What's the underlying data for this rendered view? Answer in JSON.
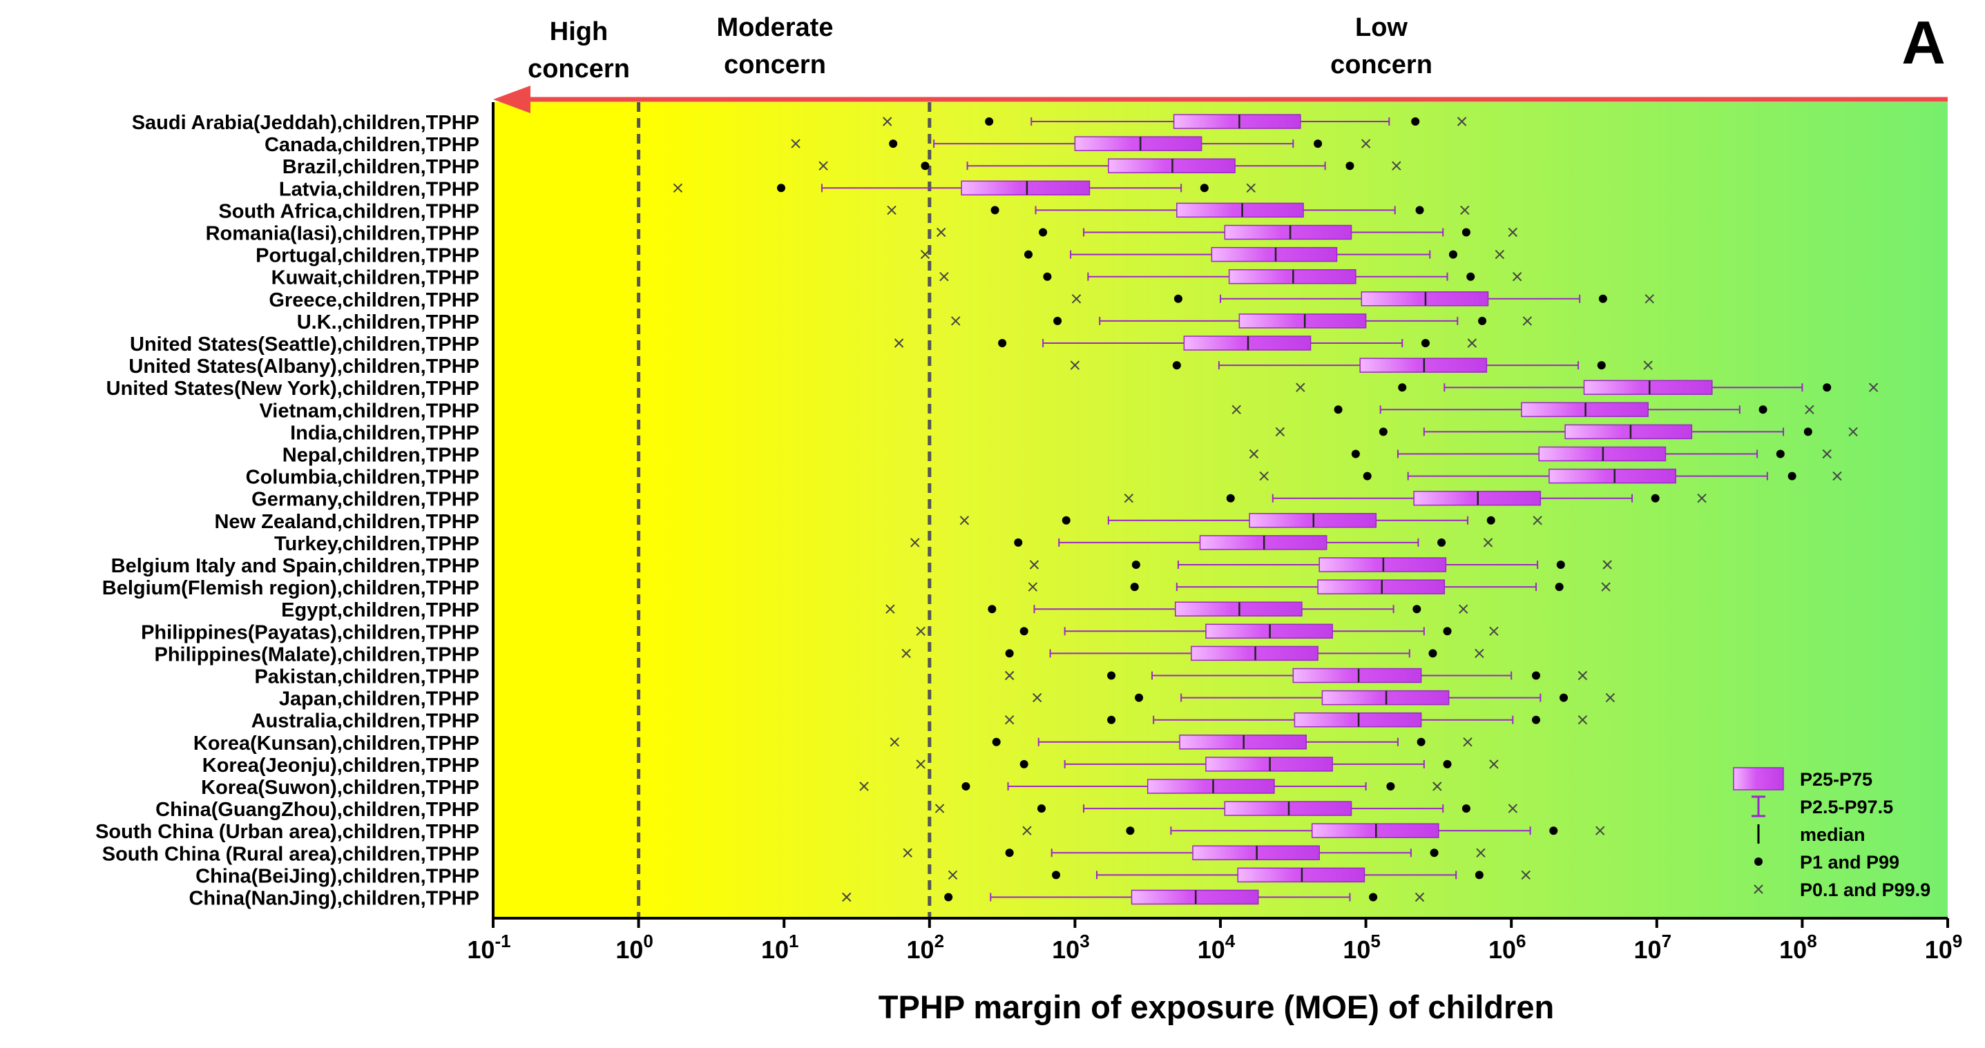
{
  "panel_label": "A",
  "concern_labels": [
    {
      "line1": "High",
      "line2": "concern"
    },
    {
      "line1": "Moderate",
      "line2": "concern"
    },
    {
      "line1": "Low",
      "line2": "concern"
    }
  ],
  "colors": {
    "box": "#c13ee8",
    "whisker": "#9b27c9",
    "arrow": "#ee4a4a",
    "bg_left": "#ffff00",
    "bg_right": "#77ef6c"
  },
  "chart_data": {
    "type": "box",
    "scale": "log10",
    "xlabel": "TPHP margin of exposure (MOE) of children",
    "xlim_exp": [
      -1,
      9
    ],
    "xticks_exp": [
      -1,
      0,
      1,
      2,
      3,
      4,
      5,
      6,
      7,
      8,
      9
    ],
    "thresholds": [
      1,
      100
    ],
    "threshold_style": "dashed",
    "legend": [
      {
        "name": "P25-P75",
        "marker": "box"
      },
      {
        "name": "P2.5-P97.5",
        "marker": "whisker"
      },
      {
        "name": "median",
        "marker": "line"
      },
      {
        "name": "P1 and P99",
        "marker": "dot"
      },
      {
        "name": "P0.1 and P99.9",
        "marker": "cross"
      }
    ],
    "legend_position": "bottom-right",
    "series_note": "values are log10(MOE): x0=P0.1, d0=P1, w0=P2.5, q1=P25, med=median, q3=P75, w1=P97.5, d1=P99, x1=P99.9",
    "rows": [
      {
        "name": "Saudi Arabia(Jeddah),children,TPHP",
        "x0": 1.71,
        "d0": 2.41,
        "w0": 2.7,
        "q1": 3.68,
        "med": 4.13,
        "q3": 4.55,
        "w1": 5.16,
        "d1": 5.34,
        "x1": 5.66
      },
      {
        "name": "Canada,children,TPHP",
        "x0": 1.08,
        "d0": 1.75,
        "w0": 2.03,
        "q1": 3.0,
        "med": 3.45,
        "q3": 3.87,
        "w1": 4.5,
        "d1": 4.67,
        "x1": 5.0
      },
      {
        "name": "Brazil,children,TPHP",
        "x0": 1.27,
        "d0": 1.97,
        "w0": 2.26,
        "q1": 3.23,
        "med": 3.67,
        "q3": 4.1,
        "w1": 4.72,
        "d1": 4.89,
        "x1": 5.21
      },
      {
        "name": "Latvia,children,TPHP",
        "x0": 0.27,
        "d0": 0.98,
        "w0": 1.26,
        "q1": 2.22,
        "med": 2.67,
        "q3": 3.1,
        "w1": 3.73,
        "d1": 3.89,
        "x1": 4.21
      },
      {
        "name": "South Africa,children,TPHP",
        "x0": 1.74,
        "d0": 2.45,
        "w0": 2.73,
        "q1": 3.7,
        "med": 4.15,
        "q3": 4.57,
        "w1": 5.2,
        "d1": 5.37,
        "x1": 5.68
      },
      {
        "name": "Romania(Iasi),children,TPHP",
        "x0": 2.08,
        "d0": 2.78,
        "w0": 3.06,
        "q1": 4.03,
        "med": 4.48,
        "q3": 4.9,
        "w1": 5.53,
        "d1": 5.69,
        "x1": 6.01
      },
      {
        "name": "Portugal,children,TPHP",
        "x0": 1.97,
        "d0": 2.68,
        "w0": 2.97,
        "q1": 3.94,
        "med": 4.38,
        "q3": 4.8,
        "w1": 5.44,
        "d1": 5.6,
        "x1": 5.92
      },
      {
        "name": "Kuwait,children,TPHP",
        "x0": 2.1,
        "d0": 2.81,
        "w0": 3.09,
        "q1": 4.06,
        "med": 4.5,
        "q3": 4.93,
        "w1": 5.56,
        "d1": 5.72,
        "x1": 6.04
      },
      {
        "name": "Greece,children,TPHP",
        "x0": 3.01,
        "d0": 3.71,
        "w0": 4.0,
        "q1": 4.97,
        "med": 5.41,
        "q3": 5.84,
        "w1": 6.47,
        "d1": 6.63,
        "x1": 6.95
      },
      {
        "name": "U.K.,children,TPHP",
        "x0": 2.18,
        "d0": 2.88,
        "w0": 3.17,
        "q1": 4.13,
        "med": 4.58,
        "q3": 5.0,
        "w1": 5.63,
        "d1": 5.8,
        "x1": 6.11
      },
      {
        "name": "United States(Seattle),children,TPHP",
        "x0": 1.79,
        "d0": 2.5,
        "w0": 2.78,
        "q1": 3.75,
        "med": 4.19,
        "q3": 4.62,
        "w1": 5.25,
        "d1": 5.41,
        "x1": 5.73
      },
      {
        "name": "United States(Albany),children,TPHP",
        "x0": 3.0,
        "d0": 3.7,
        "w0": 3.99,
        "q1": 4.96,
        "med": 5.4,
        "q3": 5.83,
        "w1": 6.46,
        "d1": 6.62,
        "x1": 6.94
      },
      {
        "name": "United States(New York),children,TPHP",
        "x0": 4.55,
        "d0": 5.25,
        "w0": 5.54,
        "q1": 6.5,
        "med": 6.95,
        "q3": 7.38,
        "w1": 8.0,
        "d1": 8.17,
        "x1": 8.49
      },
      {
        "name": "Vietnam,children,TPHP",
        "x0": 4.11,
        "d0": 4.81,
        "w0": 5.1,
        "q1": 6.07,
        "med": 6.51,
        "q3": 6.94,
        "w1": 7.57,
        "d1": 7.73,
        "x1": 8.05
      },
      {
        "name": "India,children,TPHP",
        "x0": 4.41,
        "d0": 5.12,
        "w0": 5.4,
        "q1": 6.37,
        "med": 6.82,
        "q3": 7.24,
        "w1": 7.87,
        "d1": 8.04,
        "x1": 8.35
      },
      {
        "name": "Nepal,children,TPHP",
        "x0": 4.23,
        "d0": 4.93,
        "w0": 5.22,
        "q1": 6.19,
        "med": 6.63,
        "q3": 7.06,
        "w1": 7.69,
        "d1": 7.85,
        "x1": 8.17
      },
      {
        "name": "Columbia,children,TPHP",
        "x0": 4.3,
        "d0": 5.01,
        "w0": 5.29,
        "q1": 6.26,
        "med": 6.71,
        "q3": 7.13,
        "w1": 7.76,
        "d1": 7.93,
        "x1": 8.24
      },
      {
        "name": "Germany,children,TPHP",
        "x0": 3.37,
        "d0": 4.07,
        "w0": 4.36,
        "q1": 5.33,
        "med": 5.77,
        "q3": 6.2,
        "w1": 6.83,
        "d1": 6.99,
        "x1": 7.31
      },
      {
        "name": "New Zealand,children,TPHP",
        "x0": 2.24,
        "d0": 2.94,
        "w0": 3.23,
        "q1": 4.2,
        "med": 4.64,
        "q3": 5.07,
        "w1": 5.7,
        "d1": 5.86,
        "x1": 6.18
      },
      {
        "name": "Turkey,children,TPHP",
        "x0": 1.9,
        "d0": 2.61,
        "w0": 2.89,
        "q1": 3.86,
        "med": 4.3,
        "q3": 4.73,
        "w1": 5.36,
        "d1": 5.52,
        "x1": 5.84
      },
      {
        "name": "Belgium Italy and Spain,children,TPHP",
        "x0": 2.72,
        "d0": 3.42,
        "w0": 3.71,
        "q1": 4.68,
        "med": 5.12,
        "q3": 5.55,
        "w1": 6.18,
        "d1": 6.34,
        "x1": 6.66
      },
      {
        "name": "Belgium(Flemish region),children,TPHP",
        "x0": 2.71,
        "d0": 3.41,
        "w0": 3.7,
        "q1": 4.67,
        "med": 5.11,
        "q3": 5.54,
        "w1": 6.17,
        "d1": 6.33,
        "x1": 6.65
      },
      {
        "name": "Egypt,children,TPHP",
        "x0": 1.73,
        "d0": 2.43,
        "w0": 2.72,
        "q1": 3.69,
        "med": 4.13,
        "q3": 4.56,
        "w1": 5.19,
        "d1": 5.35,
        "x1": 5.67
      },
      {
        "name": "Philippines(Payatas),children,TPHP",
        "x0": 1.94,
        "d0": 2.65,
        "w0": 2.93,
        "q1": 3.9,
        "med": 4.34,
        "q3": 4.77,
        "w1": 5.4,
        "d1": 5.56,
        "x1": 5.88
      },
      {
        "name": "Philippines(Malate),children,TPHP",
        "x0": 1.84,
        "d0": 2.55,
        "w0": 2.83,
        "q1": 3.8,
        "med": 4.24,
        "q3": 4.67,
        "w1": 5.3,
        "d1": 5.46,
        "x1": 5.78
      },
      {
        "name": "Pakistan,children,TPHP",
        "x0": 2.55,
        "d0": 3.25,
        "w0": 3.53,
        "q1": 4.5,
        "med": 4.95,
        "q3": 5.38,
        "w1": 6.0,
        "d1": 6.17,
        "x1": 6.49
      },
      {
        "name": "Japan,children,TPHP",
        "x0": 2.74,
        "d0": 3.44,
        "w0": 3.73,
        "q1": 4.7,
        "med": 5.14,
        "q3": 5.57,
        "w1": 6.2,
        "d1": 6.36,
        "x1": 6.68
      },
      {
        "name": "Australia,children,TPHP",
        "x0": 2.55,
        "d0": 3.25,
        "w0": 3.54,
        "q1": 4.51,
        "med": 4.95,
        "q3": 5.38,
        "w1": 6.01,
        "d1": 6.17,
        "x1": 6.49
      },
      {
        "name": "Korea(Kunsan),children,TPHP",
        "x0": 1.76,
        "d0": 2.46,
        "w0": 2.75,
        "q1": 3.72,
        "med": 4.16,
        "q3": 4.59,
        "w1": 5.22,
        "d1": 5.38,
        "x1": 5.7
      },
      {
        "name": "Korea(Jeonju),children,TPHP",
        "x0": 1.94,
        "d0": 2.65,
        "w0": 2.93,
        "q1": 3.9,
        "med": 4.34,
        "q3": 4.77,
        "w1": 5.4,
        "d1": 5.56,
        "x1": 5.88
      },
      {
        "name": "Korea(Suwon),children,TPHP",
        "x0": 1.55,
        "d0": 2.25,
        "w0": 2.54,
        "q1": 3.5,
        "med": 3.95,
        "q3": 4.37,
        "w1": 5.0,
        "d1": 5.17,
        "x1": 5.49
      },
      {
        "name": "China(GuangZhou),children,TPHP",
        "x0": 2.07,
        "d0": 2.77,
        "w0": 3.06,
        "q1": 4.03,
        "med": 4.47,
        "q3": 4.9,
        "w1": 5.53,
        "d1": 5.69,
        "x1": 6.01
      },
      {
        "name": "South China (Urban area),children,TPHP",
        "x0": 2.67,
        "d0": 3.38,
        "w0": 3.66,
        "q1": 4.63,
        "med": 5.07,
        "q3": 5.5,
        "w1": 6.13,
        "d1": 6.29,
        "x1": 6.61
      },
      {
        "name": "South China (Rural area),children,TPHP",
        "x0": 1.85,
        "d0": 2.55,
        "w0": 2.84,
        "q1": 3.81,
        "med": 4.25,
        "q3": 4.68,
        "w1": 5.31,
        "d1": 5.47,
        "x1": 5.79
      },
      {
        "name": "China(BeiJing),children,TPHP",
        "x0": 2.16,
        "d0": 2.87,
        "w0": 3.15,
        "q1": 4.12,
        "med": 4.56,
        "q3": 4.99,
        "w1": 5.62,
        "d1": 5.78,
        "x1": 6.1
      },
      {
        "name": "China(NanJing),children,TPHP",
        "x0": 1.43,
        "d0": 2.13,
        "w0": 2.42,
        "q1": 3.39,
        "med": 3.83,
        "q3": 4.26,
        "w1": 4.89,
        "d1": 5.05,
        "x1": 5.37
      }
    ]
  }
}
